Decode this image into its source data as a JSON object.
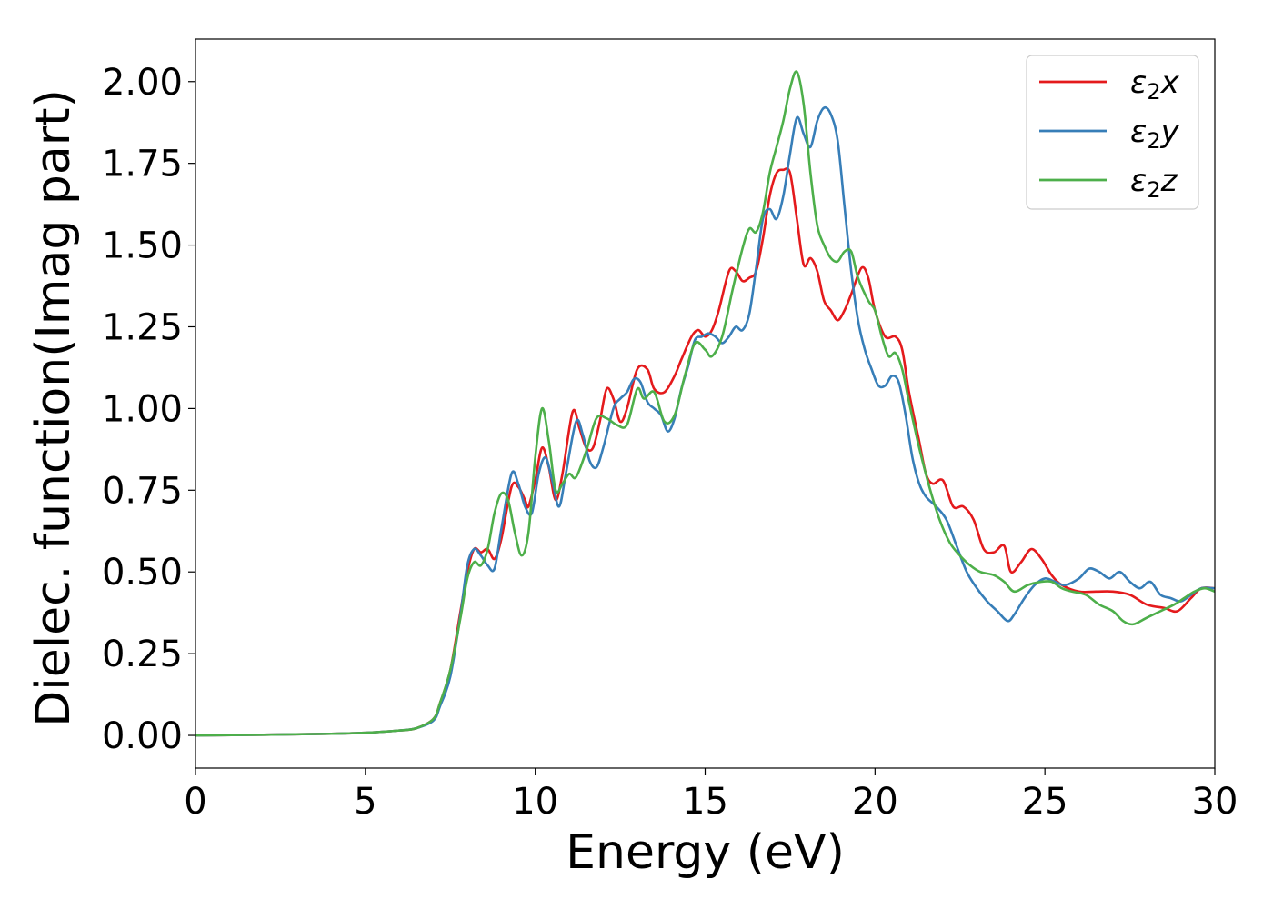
{
  "chart_data": {
    "type": "line",
    "title": "",
    "xlabel": "Energy (eV)",
    "ylabel": "Dielec. function(Imag part)",
    "xlim": [
      0,
      30
    ],
    "ylim": [
      -0.1,
      2.13
    ],
    "xticks": [
      0,
      5,
      10,
      15,
      20,
      25,
      30
    ],
    "yticks": [
      0.0,
      0.25,
      0.5,
      0.75,
      1.0,
      1.25,
      1.5,
      1.75,
      2.0
    ],
    "xtick_labels": [
      "0",
      "5",
      "10",
      "15",
      "20",
      "25",
      "30"
    ],
    "ytick_labels": [
      "0.00",
      "0.25",
      "0.50",
      "0.75",
      "1.00",
      "1.25",
      "1.50",
      "1.75",
      "2.00"
    ],
    "grid": false,
    "legend_position": "top-right",
    "series": [
      {
        "name": "ε₂x",
        "legend_base": "ε",
        "legend_sub": "2",
        "legend_suffix": "x",
        "color": "#e41a1c",
        "points": [
          [
            0,
            0.0
          ],
          [
            2,
            0.002
          ],
          [
            4,
            0.005
          ],
          [
            5,
            0.008
          ],
          [
            6,
            0.015
          ],
          [
            6.5,
            0.022
          ],
          [
            7,
            0.05
          ],
          [
            7.2,
            0.1
          ],
          [
            7.5,
            0.2
          ],
          [
            7.8,
            0.38
          ],
          [
            8.0,
            0.5
          ],
          [
            8.2,
            0.57
          ],
          [
            8.4,
            0.56
          ],
          [
            8.6,
            0.57
          ],
          [
            8.8,
            0.54
          ],
          [
            9.0,
            0.6
          ],
          [
            9.3,
            0.76
          ],
          [
            9.5,
            0.76
          ],
          [
            9.7,
            0.72
          ],
          [
            9.8,
            0.7
          ],
          [
            10.0,
            0.78
          ],
          [
            10.2,
            0.88
          ],
          [
            10.4,
            0.82
          ],
          [
            10.6,
            0.72
          ],
          [
            10.8,
            0.8
          ],
          [
            11.1,
            0.99
          ],
          [
            11.3,
            0.94
          ],
          [
            11.5,
            0.88
          ],
          [
            11.7,
            0.88
          ],
          [
            11.9,
            0.96
          ],
          [
            12.1,
            1.06
          ],
          [
            12.3,
            1.03
          ],
          [
            12.5,
            0.96
          ],
          [
            12.7,
            1.0
          ],
          [
            13.0,
            1.12
          ],
          [
            13.3,
            1.12
          ],
          [
            13.5,
            1.06
          ],
          [
            13.8,
            1.05
          ],
          [
            14.1,
            1.1
          ],
          [
            14.3,
            1.15
          ],
          [
            14.6,
            1.22
          ],
          [
            14.8,
            1.24
          ],
          [
            15.0,
            1.22
          ],
          [
            15.2,
            1.24
          ],
          [
            15.4,
            1.3
          ],
          [
            15.7,
            1.42
          ],
          [
            15.9,
            1.42
          ],
          [
            16.1,
            1.39
          ],
          [
            16.3,
            1.4
          ],
          [
            16.5,
            1.42
          ],
          [
            16.7,
            1.52
          ],
          [
            16.9,
            1.65
          ],
          [
            17.1,
            1.72
          ],
          [
            17.3,
            1.73
          ],
          [
            17.5,
            1.72
          ],
          [
            17.7,
            1.58
          ],
          [
            17.9,
            1.44
          ],
          [
            18.1,
            1.46
          ],
          [
            18.3,
            1.42
          ],
          [
            18.5,
            1.33
          ],
          [
            18.7,
            1.3
          ],
          [
            18.9,
            1.27
          ],
          [
            19.1,
            1.3
          ],
          [
            19.3,
            1.35
          ],
          [
            19.6,
            1.43
          ],
          [
            19.8,
            1.4
          ],
          [
            20.0,
            1.3
          ],
          [
            20.3,
            1.22
          ],
          [
            20.6,
            1.22
          ],
          [
            20.8,
            1.18
          ],
          [
            21.0,
            1.05
          ],
          [
            21.3,
            0.9
          ],
          [
            21.5,
            0.8
          ],
          [
            21.7,
            0.77
          ],
          [
            22.0,
            0.78
          ],
          [
            22.3,
            0.7
          ],
          [
            22.6,
            0.7
          ],
          [
            22.9,
            0.66
          ],
          [
            23.2,
            0.57
          ],
          [
            23.5,
            0.56
          ],
          [
            23.8,
            0.58
          ],
          [
            24.0,
            0.5
          ],
          [
            24.3,
            0.53
          ],
          [
            24.6,
            0.57
          ],
          [
            24.9,
            0.54
          ],
          [
            25.2,
            0.49
          ],
          [
            25.5,
            0.46
          ],
          [
            26.0,
            0.44
          ],
          [
            26.5,
            0.44
          ],
          [
            27.0,
            0.44
          ],
          [
            27.5,
            0.43
          ],
          [
            28.0,
            0.4
          ],
          [
            28.5,
            0.39
          ],
          [
            28.9,
            0.38
          ],
          [
            29.3,
            0.42
          ],
          [
            29.6,
            0.45
          ],
          [
            30.0,
            0.45
          ]
        ]
      },
      {
        "name": "ε₂y",
        "legend_base": "ε",
        "legend_sub": "2",
        "legend_suffix": "y",
        "color": "#377eb8",
        "points": [
          [
            0,
            0.0
          ],
          [
            2,
            0.002
          ],
          [
            4,
            0.005
          ],
          [
            5,
            0.008
          ],
          [
            6,
            0.015
          ],
          [
            6.5,
            0.022
          ],
          [
            7,
            0.045
          ],
          [
            7.2,
            0.09
          ],
          [
            7.5,
            0.18
          ],
          [
            7.8,
            0.37
          ],
          [
            8.0,
            0.52
          ],
          [
            8.2,
            0.57
          ],
          [
            8.4,
            0.55
          ],
          [
            8.6,
            0.52
          ],
          [
            8.8,
            0.51
          ],
          [
            9.0,
            0.63
          ],
          [
            9.3,
            0.8
          ],
          [
            9.5,
            0.77
          ],
          [
            9.7,
            0.7
          ],
          [
            9.9,
            0.68
          ],
          [
            10.1,
            0.8
          ],
          [
            10.3,
            0.85
          ],
          [
            10.5,
            0.78
          ],
          [
            10.7,
            0.7
          ],
          [
            10.9,
            0.8
          ],
          [
            11.2,
            0.96
          ],
          [
            11.4,
            0.92
          ],
          [
            11.6,
            0.84
          ],
          [
            11.8,
            0.82
          ],
          [
            12.0,
            0.88
          ],
          [
            12.3,
            1.0
          ],
          [
            12.5,
            1.03
          ],
          [
            12.7,
            1.05
          ],
          [
            12.9,
            1.09
          ],
          [
            13.1,
            1.08
          ],
          [
            13.3,
            1.02
          ],
          [
            13.5,
            1.0
          ],
          [
            13.7,
            0.98
          ],
          [
            13.9,
            0.93
          ],
          [
            14.1,
            0.97
          ],
          [
            14.3,
            1.06
          ],
          [
            14.5,
            1.13
          ],
          [
            14.7,
            1.21
          ],
          [
            14.9,
            1.22
          ],
          [
            15.1,
            1.23
          ],
          [
            15.3,
            1.22
          ],
          [
            15.5,
            1.2
          ],
          [
            15.7,
            1.22
          ],
          [
            15.9,
            1.25
          ],
          [
            16.1,
            1.24
          ],
          [
            16.3,
            1.29
          ],
          [
            16.5,
            1.43
          ],
          [
            16.7,
            1.58
          ],
          [
            16.9,
            1.61
          ],
          [
            17.1,
            1.58
          ],
          [
            17.3,
            1.65
          ],
          [
            17.5,
            1.78
          ],
          [
            17.7,
            1.89
          ],
          [
            17.9,
            1.84
          ],
          [
            18.1,
            1.8
          ],
          [
            18.3,
            1.88
          ],
          [
            18.5,
            1.92
          ],
          [
            18.7,
            1.9
          ],
          [
            18.9,
            1.82
          ],
          [
            19.1,
            1.62
          ],
          [
            19.3,
            1.42
          ],
          [
            19.5,
            1.27
          ],
          [
            19.7,
            1.18
          ],
          [
            19.9,
            1.12
          ],
          [
            20.1,
            1.07
          ],
          [
            20.3,
            1.07
          ],
          [
            20.5,
            1.1
          ],
          [
            20.7,
            1.08
          ],
          [
            20.9,
            0.98
          ],
          [
            21.1,
            0.85
          ],
          [
            21.3,
            0.77
          ],
          [
            21.5,
            0.73
          ],
          [
            21.8,
            0.7
          ],
          [
            22.1,
            0.66
          ],
          [
            22.4,
            0.58
          ],
          [
            22.7,
            0.5
          ],
          [
            23.0,
            0.45
          ],
          [
            23.3,
            0.41
          ],
          [
            23.6,
            0.38
          ],
          [
            23.9,
            0.35
          ],
          [
            24.1,
            0.37
          ],
          [
            24.4,
            0.42
          ],
          [
            24.7,
            0.46
          ],
          [
            25.0,
            0.48
          ],
          [
            25.3,
            0.47
          ],
          [
            25.6,
            0.46
          ],
          [
            26.0,
            0.48
          ],
          [
            26.3,
            0.51
          ],
          [
            26.6,
            0.5
          ],
          [
            26.9,
            0.48
          ],
          [
            27.2,
            0.5
          ],
          [
            27.5,
            0.47
          ],
          [
            27.8,
            0.45
          ],
          [
            28.1,
            0.47
          ],
          [
            28.4,
            0.43
          ],
          [
            28.7,
            0.42
          ],
          [
            29.0,
            0.41
          ],
          [
            29.3,
            0.43
          ],
          [
            29.6,
            0.45
          ],
          [
            30.0,
            0.45
          ]
        ]
      },
      {
        "name": "ε₂z",
        "legend_base": "ε",
        "legend_sub": "2",
        "legend_suffix": "z",
        "color": "#4daf4a",
        "points": [
          [
            0,
            0.0
          ],
          [
            2,
            0.002
          ],
          [
            4,
            0.005
          ],
          [
            5,
            0.008
          ],
          [
            6,
            0.015
          ],
          [
            6.5,
            0.022
          ],
          [
            7,
            0.05
          ],
          [
            7.2,
            0.1
          ],
          [
            7.5,
            0.2
          ],
          [
            7.8,
            0.36
          ],
          [
            8.0,
            0.48
          ],
          [
            8.2,
            0.53
          ],
          [
            8.4,
            0.52
          ],
          [
            8.6,
            0.57
          ],
          [
            8.8,
            0.68
          ],
          [
            9.0,
            0.74
          ],
          [
            9.2,
            0.72
          ],
          [
            9.4,
            0.62
          ],
          [
            9.6,
            0.55
          ],
          [
            9.8,
            0.62
          ],
          [
            10.0,
            0.85
          ],
          [
            10.2,
            1.0
          ],
          [
            10.4,
            0.9
          ],
          [
            10.6,
            0.75
          ],
          [
            10.8,
            0.77
          ],
          [
            11.0,
            0.8
          ],
          [
            11.2,
            0.79
          ],
          [
            11.5,
            0.87
          ],
          [
            11.8,
            0.97
          ],
          [
            12.1,
            0.97
          ],
          [
            12.4,
            0.95
          ],
          [
            12.7,
            0.95
          ],
          [
            13.0,
            1.06
          ],
          [
            13.2,
            1.03
          ],
          [
            13.5,
            1.05
          ],
          [
            13.8,
            0.96
          ],
          [
            14.1,
            0.98
          ],
          [
            14.4,
            1.1
          ],
          [
            14.7,
            1.2
          ],
          [
            15.0,
            1.18
          ],
          [
            15.2,
            1.16
          ],
          [
            15.5,
            1.22
          ],
          [
            15.8,
            1.36
          ],
          [
            16.1,
            1.49
          ],
          [
            16.3,
            1.55
          ],
          [
            16.5,
            1.54
          ],
          [
            16.7,
            1.6
          ],
          [
            16.9,
            1.72
          ],
          [
            17.1,
            1.8
          ],
          [
            17.3,
            1.88
          ],
          [
            17.5,
            1.98
          ],
          [
            17.7,
            2.03
          ],
          [
            17.9,
            1.93
          ],
          [
            18.1,
            1.72
          ],
          [
            18.3,
            1.56
          ],
          [
            18.5,
            1.5
          ],
          [
            18.7,
            1.46
          ],
          [
            18.9,
            1.45
          ],
          [
            19.1,
            1.48
          ],
          [
            19.3,
            1.48
          ],
          [
            19.5,
            1.4
          ],
          [
            19.8,
            1.33
          ],
          [
            20.0,
            1.3
          ],
          [
            20.2,
            1.22
          ],
          [
            20.4,
            1.16
          ],
          [
            20.6,
            1.17
          ],
          [
            20.8,
            1.12
          ],
          [
            21.0,
            1.02
          ],
          [
            21.3,
            0.88
          ],
          [
            21.6,
            0.76
          ],
          [
            21.9,
            0.66
          ],
          [
            22.2,
            0.59
          ],
          [
            22.5,
            0.55
          ],
          [
            22.8,
            0.52
          ],
          [
            23.1,
            0.5
          ],
          [
            23.5,
            0.49
          ],
          [
            23.8,
            0.47
          ],
          [
            24.1,
            0.44
          ],
          [
            24.5,
            0.46
          ],
          [
            24.9,
            0.47
          ],
          [
            25.2,
            0.47
          ],
          [
            25.5,
            0.45
          ],
          [
            25.8,
            0.44
          ],
          [
            26.2,
            0.43
          ],
          [
            26.6,
            0.4
          ],
          [
            27.0,
            0.38
          ],
          [
            27.3,
            0.35
          ],
          [
            27.6,
            0.34
          ],
          [
            28.0,
            0.36
          ],
          [
            28.4,
            0.38
          ],
          [
            28.8,
            0.4
          ],
          [
            29.1,
            0.42
          ],
          [
            29.4,
            0.44
          ],
          [
            29.7,
            0.45
          ],
          [
            30.0,
            0.44
          ]
        ]
      }
    ]
  }
}
